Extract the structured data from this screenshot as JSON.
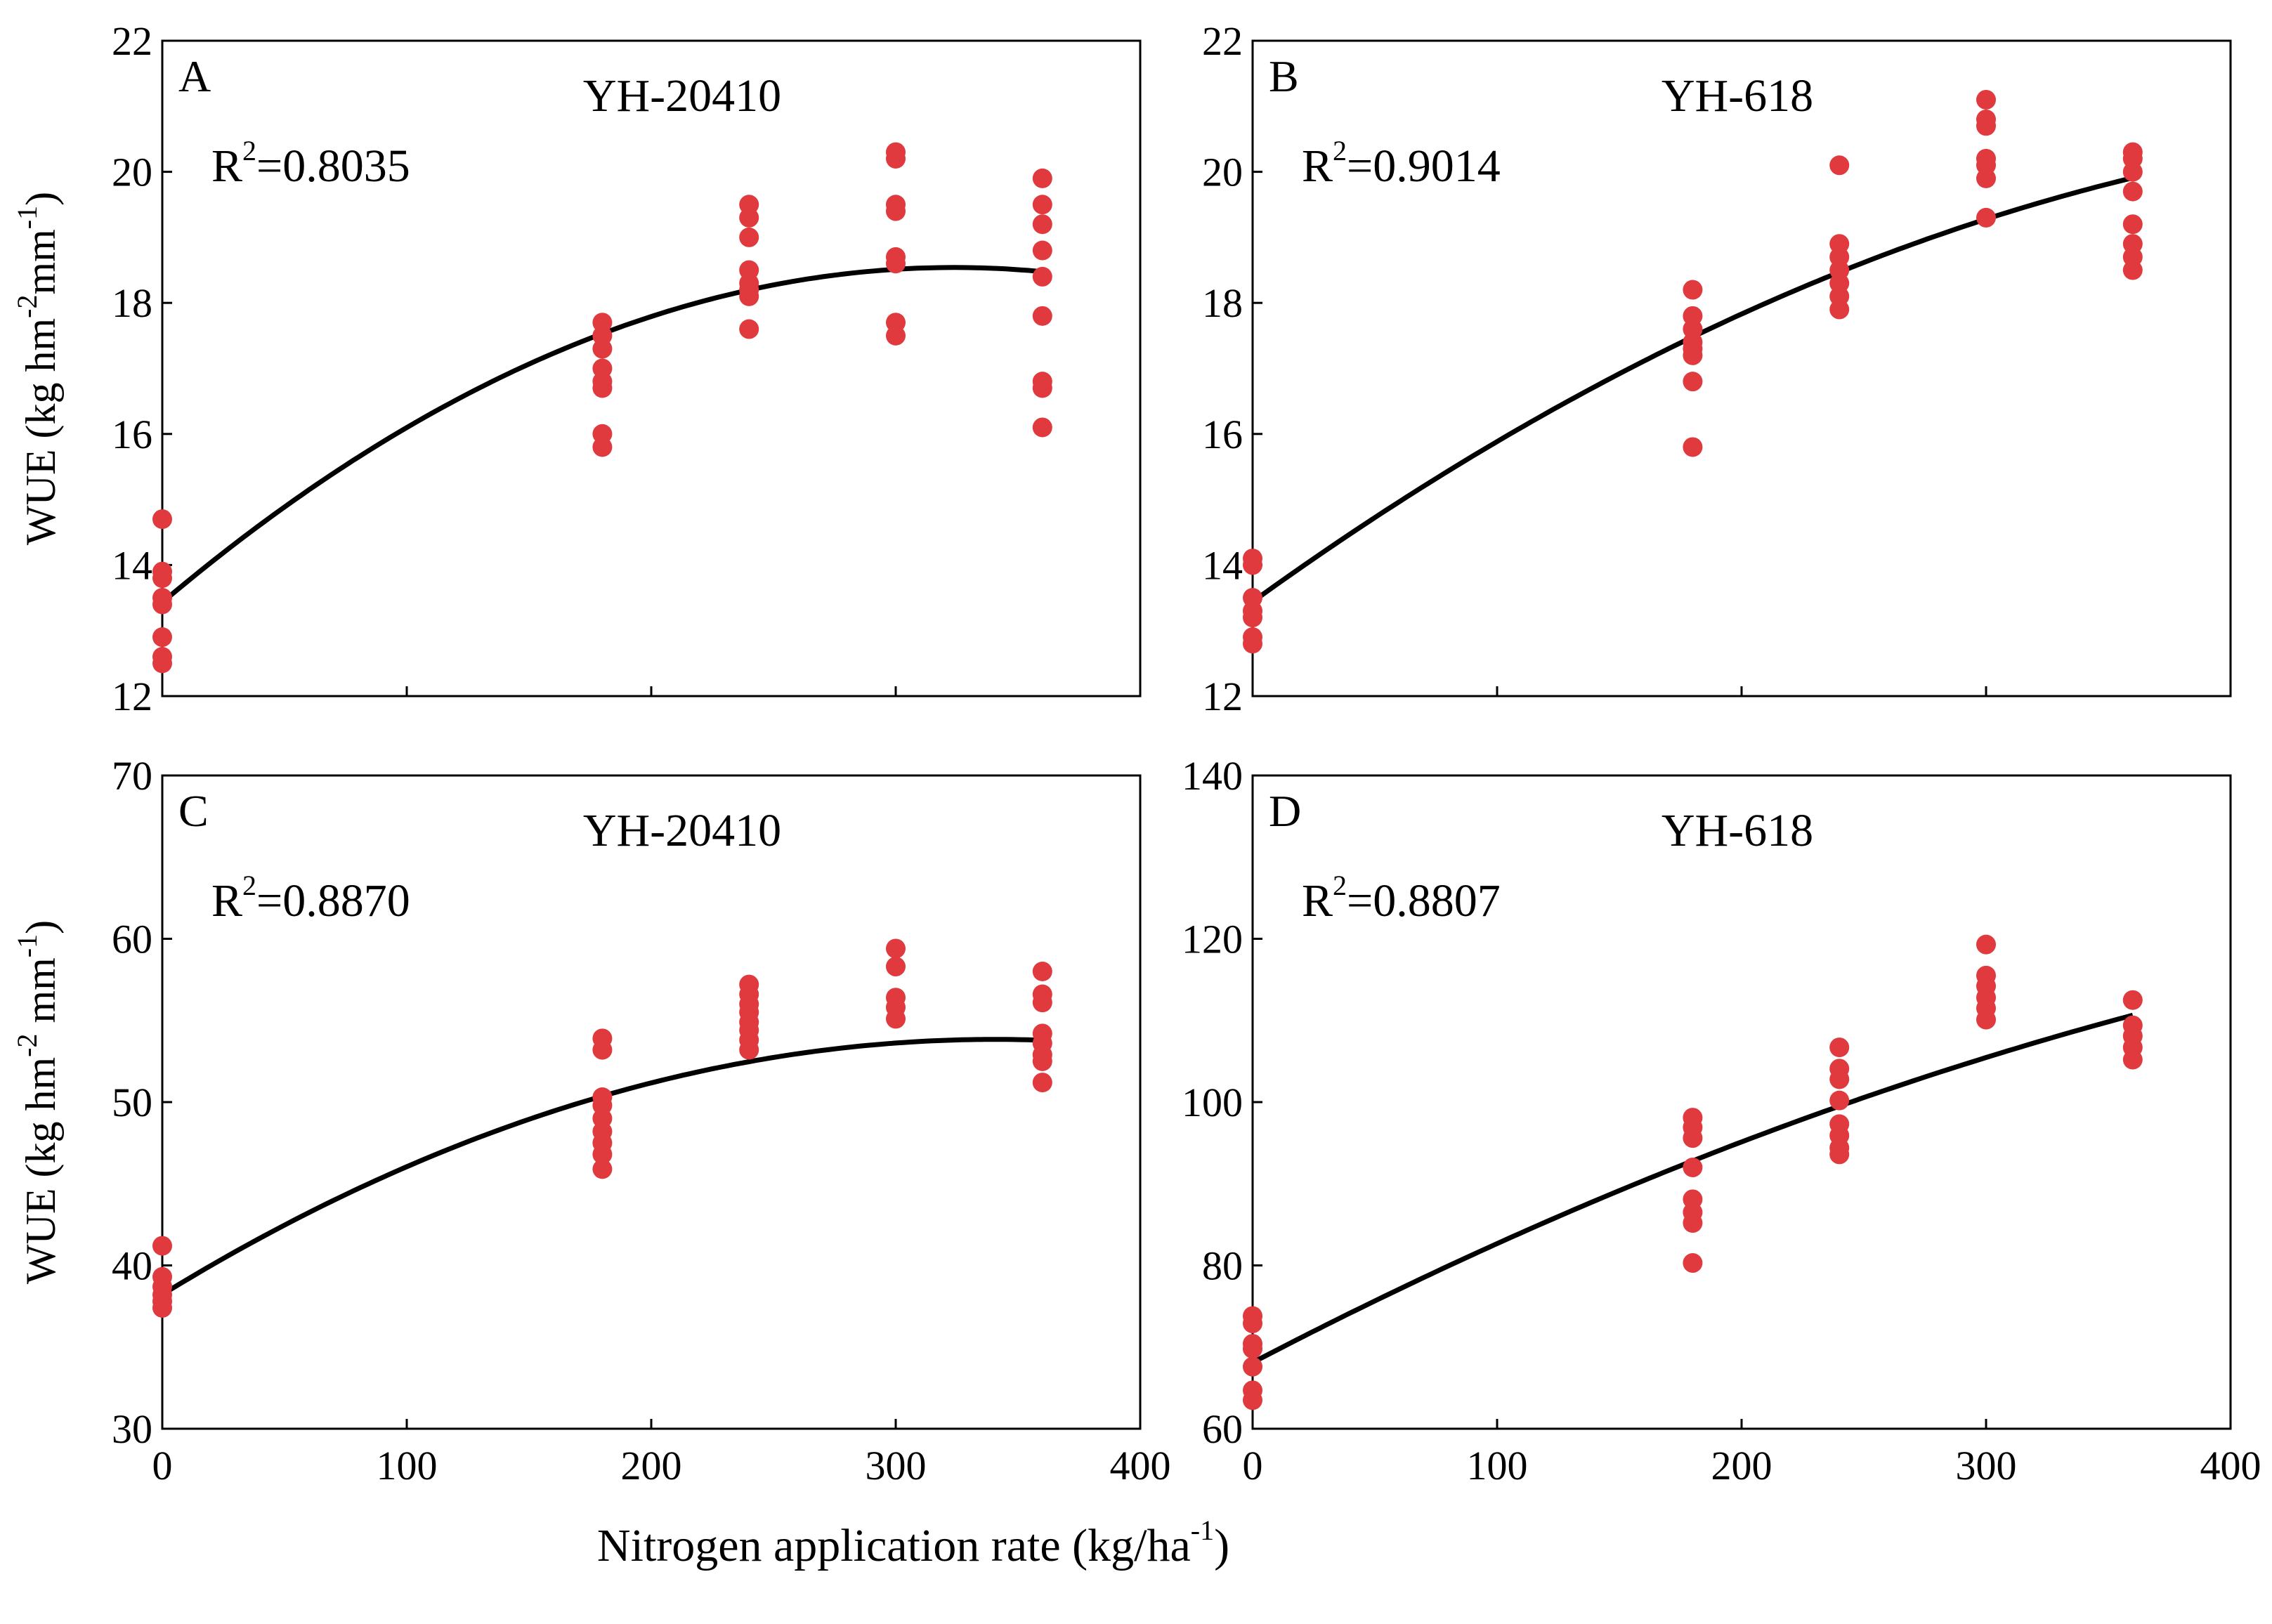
{
  "figure": {
    "xlabel": "Nitrogen application rate (kg/ha",
    "xlabel_sup": "-1",
    "xlabel_end": ")",
    "point_color": "#e0393e",
    "curve_color": "#000000"
  },
  "chart_data": [
    {
      "type": "scatter",
      "panel": "A",
      "title": "YH-20410",
      "r2_label": "R",
      "r2_sup": "2",
      "r2_value": "=0.8035",
      "ylabel_parts": [
        {
          "t": "WUE (kg hm",
          "sup": false
        },
        {
          "t": "-2",
          "sup": true
        },
        {
          "t": "mm",
          "sup": false
        },
        {
          "t": "-1",
          "sup": true
        },
        {
          "t": ")",
          "sup": false
        }
      ],
      "xlim": [
        0,
        400
      ],
      "ylim": [
        12,
        22
      ],
      "xticks": [
        0,
        100,
        200,
        300,
        400
      ],
      "yticks": [
        12,
        14,
        16,
        18,
        20,
        22
      ],
      "show_x_labels": false,
      "points": [
        {
          "x": 0,
          "y": 14.7
        },
        {
          "x": 0,
          "y": 13.9
        },
        {
          "x": 0,
          "y": 13.8
        },
        {
          "x": 0,
          "y": 13.5
        },
        {
          "x": 0,
          "y": 13.4
        },
        {
          "x": 0,
          "y": 12.9
        },
        {
          "x": 0,
          "y": 12.6
        },
        {
          "x": 0,
          "y": 12.5
        },
        {
          "x": 180,
          "y": 17.7
        },
        {
          "x": 180,
          "y": 17.5
        },
        {
          "x": 180,
          "y": 17.3
        },
        {
          "x": 180,
          "y": 17.0
        },
        {
          "x": 180,
          "y": 16.8
        },
        {
          "x": 180,
          "y": 16.7
        },
        {
          "x": 180,
          "y": 16.0
        },
        {
          "x": 180,
          "y": 15.8
        },
        {
          "x": 240,
          "y": 19.5
        },
        {
          "x": 240,
          "y": 19.3
        },
        {
          "x": 240,
          "y": 19.0
        },
        {
          "x": 240,
          "y": 18.5
        },
        {
          "x": 240,
          "y": 18.3
        },
        {
          "x": 240,
          "y": 18.2
        },
        {
          "x": 240,
          "y": 18.1
        },
        {
          "x": 240,
          "y": 17.6
        },
        {
          "x": 300,
          "y": 20.3
        },
        {
          "x": 300,
          "y": 20.2
        },
        {
          "x": 300,
          "y": 19.5
        },
        {
          "x": 300,
          "y": 19.4
        },
        {
          "x": 300,
          "y": 18.7
        },
        {
          "x": 300,
          "y": 18.6
        },
        {
          "x": 300,
          "y": 17.7
        },
        {
          "x": 300,
          "y": 17.5
        },
        {
          "x": 360,
          "y": 19.9
        },
        {
          "x": 360,
          "y": 19.5
        },
        {
          "x": 360,
          "y": 19.2
        },
        {
          "x": 360,
          "y": 18.8
        },
        {
          "x": 360,
          "y": 18.4
        },
        {
          "x": 360,
          "y": 17.8
        },
        {
          "x": 360,
          "y": 16.8
        },
        {
          "x": 360,
          "y": 16.7
        },
        {
          "x": 360,
          "y": 16.1
        }
      ],
      "fit": {
        "type": "quadratic",
        "a": -4.87e-05,
        "b": 0.03155,
        "c": 13.43,
        "x_range": [
          0,
          360
        ]
      }
    },
    {
      "type": "scatter",
      "panel": "B",
      "title": "YH-618",
      "r2_label": "R",
      "r2_sup": "2",
      "r2_value": "=0.9014",
      "ylabel_parts": [],
      "xlim": [
        0,
        400
      ],
      "ylim": [
        12,
        22
      ],
      "xticks": [
        0,
        100,
        200,
        300,
        400
      ],
      "yticks": [
        12,
        14,
        16,
        18,
        20,
        22
      ],
      "show_x_labels": false,
      "points": [
        {
          "x": 0,
          "y": 14.1
        },
        {
          "x": 0,
          "y": 14.0
        },
        {
          "x": 0,
          "y": 13.5
        },
        {
          "x": 0,
          "y": 13.3
        },
        {
          "x": 0,
          "y": 13.2
        },
        {
          "x": 0,
          "y": 12.9
        },
        {
          "x": 0,
          "y": 12.8
        },
        {
          "x": 180,
          "y": 18.2
        },
        {
          "x": 180,
          "y": 17.8
        },
        {
          "x": 180,
          "y": 17.6
        },
        {
          "x": 180,
          "y": 17.4
        },
        {
          "x": 180,
          "y": 17.3
        },
        {
          "x": 180,
          "y": 17.2
        },
        {
          "x": 180,
          "y": 16.8
        },
        {
          "x": 180,
          "y": 15.8
        },
        {
          "x": 240,
          "y": 20.1
        },
        {
          "x": 240,
          "y": 18.9
        },
        {
          "x": 240,
          "y": 18.7
        },
        {
          "x": 240,
          "y": 18.5
        },
        {
          "x": 240,
          "y": 18.3
        },
        {
          "x": 240,
          "y": 18.1
        },
        {
          "x": 240,
          "y": 17.9
        },
        {
          "x": 300,
          "y": 21.1
        },
        {
          "x": 300,
          "y": 20.8
        },
        {
          "x": 300,
          "y": 20.7
        },
        {
          "x": 300,
          "y": 20.2
        },
        {
          "x": 300,
          "y": 20.1
        },
        {
          "x": 300,
          "y": 19.9
        },
        {
          "x": 300,
          "y": 19.3
        },
        {
          "x": 360,
          "y": 20.3
        },
        {
          "x": 360,
          "y": 20.2
        },
        {
          "x": 360,
          "y": 20.0
        },
        {
          "x": 360,
          "y": 19.7
        },
        {
          "x": 360,
          "y": 19.2
        },
        {
          "x": 360,
          "y": 18.9
        },
        {
          "x": 360,
          "y": 18.7
        },
        {
          "x": 360,
          "y": 18.5
        }
      ],
      "fit": {
        "type": "quadratic",
        "a": -2.49e-05,
        "b": 0.02693,
        "c": 13.44,
        "x_range": [
          0,
          360
        ]
      }
    },
    {
      "type": "scatter",
      "panel": "C",
      "title": "YH-20410",
      "r2_label": "R",
      "r2_sup": "2",
      "r2_value": "=0.8870",
      "ylabel_parts": [
        {
          "t": "WUE (kg hm",
          "sup": false
        },
        {
          "t": "-2",
          "sup": true
        },
        {
          "t": " mm",
          "sup": false
        },
        {
          "t": "-1",
          "sup": true
        },
        {
          "t": ")",
          "sup": false
        }
      ],
      "xlim": [
        0,
        400
      ],
      "ylim": [
        30,
        70
      ],
      "xticks": [
        0,
        100,
        200,
        300,
        400
      ],
      "yticks": [
        30,
        40,
        50,
        60,
        70
      ],
      "show_x_labels": true,
      "points": [
        {
          "x": 0,
          "y": 41.2
        },
        {
          "x": 0,
          "y": 39.3
        },
        {
          "x": 0,
          "y": 38.7
        },
        {
          "x": 0,
          "y": 38.2
        },
        {
          "x": 0,
          "y": 37.8
        },
        {
          "x": 0,
          "y": 37.4
        },
        {
          "x": 180,
          "y": 53.9
        },
        {
          "x": 180,
          "y": 53.2
        },
        {
          "x": 180,
          "y": 50.3
        },
        {
          "x": 180,
          "y": 49.8
        },
        {
          "x": 180,
          "y": 49.0
        },
        {
          "x": 180,
          "y": 48.2
        },
        {
          "x": 180,
          "y": 47.5
        },
        {
          "x": 180,
          "y": 46.8
        },
        {
          "x": 180,
          "y": 45.9
        },
        {
          "x": 240,
          "y": 57.2
        },
        {
          "x": 240,
          "y": 56.6
        },
        {
          "x": 240,
          "y": 56.0
        },
        {
          "x": 240,
          "y": 55.5
        },
        {
          "x": 240,
          "y": 54.9
        },
        {
          "x": 240,
          "y": 54.4
        },
        {
          "x": 240,
          "y": 53.8
        },
        {
          "x": 240,
          "y": 53.2
        },
        {
          "x": 300,
          "y": 59.4
        },
        {
          "x": 300,
          "y": 58.3
        },
        {
          "x": 300,
          "y": 56.4
        },
        {
          "x": 300,
          "y": 55.8
        },
        {
          "x": 300,
          "y": 55.1
        },
        {
          "x": 360,
          "y": 58.0
        },
        {
          "x": 360,
          "y": 56.6
        },
        {
          "x": 360,
          "y": 56.1
        },
        {
          "x": 360,
          "y": 54.2
        },
        {
          "x": 360,
          "y": 53.6
        },
        {
          "x": 360,
          "y": 52.9
        },
        {
          "x": 360,
          "y": 52.5
        },
        {
          "x": 360,
          "y": 51.2
        }
      ],
      "fit": {
        "type": "quadratic",
        "a": -0.0001346,
        "b": 0.0917,
        "c": 38.22,
        "x_range": [
          0,
          360
        ]
      }
    },
    {
      "type": "scatter",
      "panel": "D",
      "title": "YH-618",
      "r2_label": "R",
      "r2_sup": "2",
      "r2_value": "=0.8807",
      "ylabel_parts": [],
      "xlim": [
        0,
        400
      ],
      "ylim": [
        60,
        140
      ],
      "xticks": [
        0,
        100,
        200,
        300,
        400
      ],
      "yticks": [
        60,
        80,
        100,
        120,
        140
      ],
      "show_x_labels": true,
      "points": [
        {
          "x": 0,
          "y": 73.8
        },
        {
          "x": 0,
          "y": 72.9
        },
        {
          "x": 0,
          "y": 70.4
        },
        {
          "x": 0,
          "y": 69.8
        },
        {
          "x": 0,
          "y": 67.6
        },
        {
          "x": 0,
          "y": 64.7
        },
        {
          "x": 0,
          "y": 63.5
        },
        {
          "x": 180,
          "y": 98.1
        },
        {
          "x": 180,
          "y": 96.9
        },
        {
          "x": 180,
          "y": 95.6
        },
        {
          "x": 180,
          "y": 92.0
        },
        {
          "x": 180,
          "y": 88.1
        },
        {
          "x": 180,
          "y": 86.5
        },
        {
          "x": 180,
          "y": 85.2
        },
        {
          "x": 180,
          "y": 80.3
        },
        {
          "x": 240,
          "y": 106.7
        },
        {
          "x": 240,
          "y": 104.1
        },
        {
          "x": 240,
          "y": 102.8
        },
        {
          "x": 240,
          "y": 100.2
        },
        {
          "x": 240,
          "y": 97.3
        },
        {
          "x": 240,
          "y": 95.9
        },
        {
          "x": 240,
          "y": 94.4
        },
        {
          "x": 240,
          "y": 93.6
        },
        {
          "x": 300,
          "y": 119.3
        },
        {
          "x": 300,
          "y": 115.5
        },
        {
          "x": 300,
          "y": 114.2
        },
        {
          "x": 300,
          "y": 112.8
        },
        {
          "x": 300,
          "y": 111.5
        },
        {
          "x": 300,
          "y": 110.1
        },
        {
          "x": 360,
          "y": 112.5
        },
        {
          "x": 360,
          "y": 109.4
        },
        {
          "x": 360,
          "y": 108.1
        },
        {
          "x": 360,
          "y": 106.7
        },
        {
          "x": 360,
          "y": 105.2
        }
      ],
      "fit": {
        "type": "quadratic",
        "a": -0.0001059,
        "b": 0.1563,
        "c": 68.1,
        "x_range": [
          0,
          360
        ]
      }
    }
  ]
}
